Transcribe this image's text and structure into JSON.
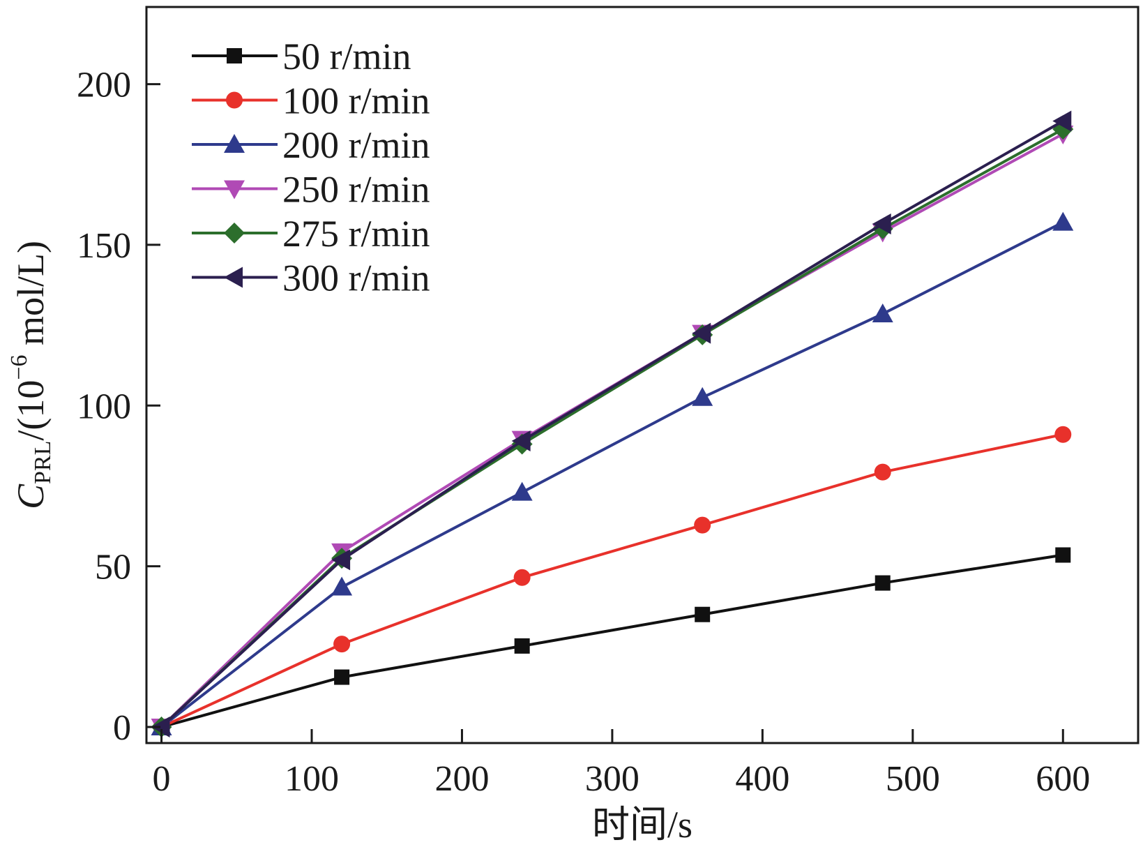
{
  "chart_data": {
    "type": "line",
    "title": "",
    "xlabel": "时间/s",
    "ylabel": {
      "symbol": "C",
      "subscript": "PRL",
      "open": "/(10",
      "exponent": "−6",
      "unit": " mol/L)"
    },
    "xlim": [
      -10,
      650
    ],
    "ylim": [
      -5,
      224
    ],
    "x_ticks": [
      0,
      100,
      200,
      300,
      400,
      500,
      600
    ],
    "y_ticks": [
      0,
      50,
      100,
      150,
      200
    ],
    "x_tick_labels": [
      "0",
      "100",
      "200",
      "300",
      "400",
      "500",
      "600"
    ],
    "y_tick_labels": [
      "0",
      "50",
      "100",
      "150",
      "200"
    ],
    "grid": false,
    "legend_position": "top-left",
    "x": [
      0,
      120,
      240,
      360,
      480,
      600
    ],
    "series": [
      {
        "name": "50 r/min",
        "color": "#111111",
        "marker": "square",
        "values": [
          0,
          15.5,
          25.2,
          35.0,
          44.8,
          53.5
        ]
      },
      {
        "name": "100 r/min",
        "color": "#e8312b",
        "marker": "circle",
        "values": [
          0,
          25.8,
          46.5,
          62.8,
          79.3,
          91.0
        ]
      },
      {
        "name": "200 r/min",
        "color": "#2e3a8c",
        "marker": "triangle-up",
        "values": [
          0,
          43.5,
          73.0,
          102.5,
          128.5,
          157.0
        ]
      },
      {
        "name": "250 r/min",
        "color": "#b04ab5",
        "marker": "triangle-down",
        "values": [
          0,
          54.5,
          89.5,
          122.5,
          154.0,
          184.5
        ]
      },
      {
        "name": "275 r/min",
        "color": "#2c6e2c",
        "marker": "diamond",
        "values": [
          0,
          52.5,
          88.0,
          122.0,
          155.0,
          186.0
        ]
      },
      {
        "name": "300 r/min",
        "color": "#2b1f4f",
        "marker": "triangle-left",
        "values": [
          0,
          52.0,
          89.0,
          122.5,
          156.5,
          188.5
        ]
      }
    ]
  }
}
